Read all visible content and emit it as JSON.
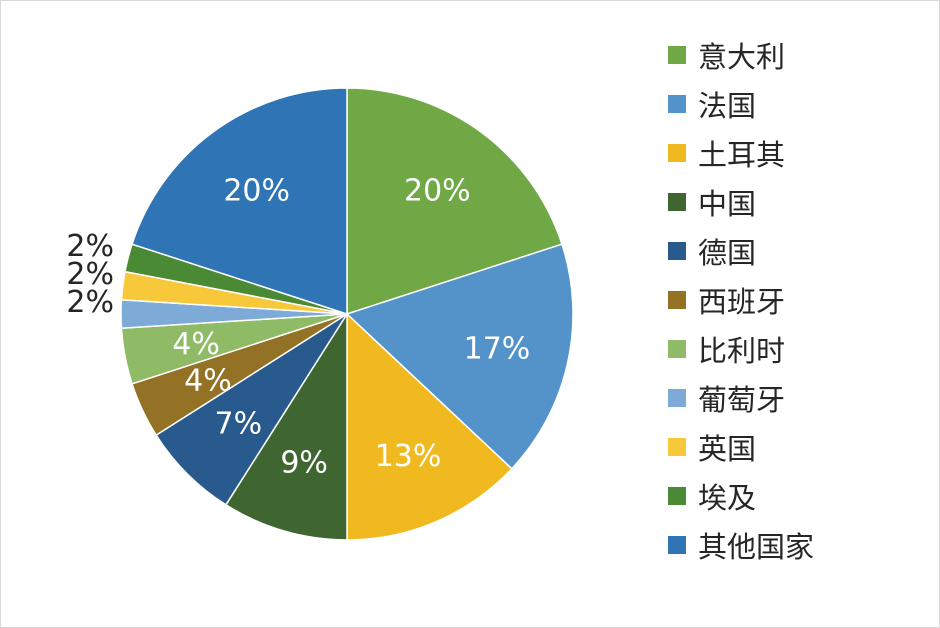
{
  "chart_data": {
    "type": "pie",
    "title": "",
    "legend_position": "right",
    "slices": [
      {
        "name": "意大利",
        "value": 20,
        "label": "20%",
        "color": "#70a846"
      },
      {
        "name": "法国",
        "value": 17,
        "label": "17%",
        "color": "#5393c9"
      },
      {
        "name": "土耳其",
        "value": 13,
        "label": "13%",
        "color": "#f0b920"
      },
      {
        "name": "中国",
        "value": 9,
        "label": "9%",
        "color": "#3f6630"
      },
      {
        "name": "德国",
        "value": 7,
        "label": "7%",
        "color": "#285a8e"
      },
      {
        "name": "西班牙",
        "value": 4,
        "label": "4%",
        "color": "#947225"
      },
      {
        "name": "比利时",
        "value": 4,
        "label": "4%",
        "color": "#8fbb66"
      },
      {
        "name": "葡萄牙",
        "value": 2,
        "label": "2%",
        "color": "#7eaad8"
      },
      {
        "name": "英国",
        "value": 2,
        "label": "2%",
        "color": "#f7c93a"
      },
      {
        "name": "埃及",
        "value": 2,
        "label": "2%",
        "color": "#4b8a35"
      },
      {
        "name": "其他国家",
        "value": 20,
        "label": "20%",
        "color": "#2f74b5"
      }
    ]
  }
}
